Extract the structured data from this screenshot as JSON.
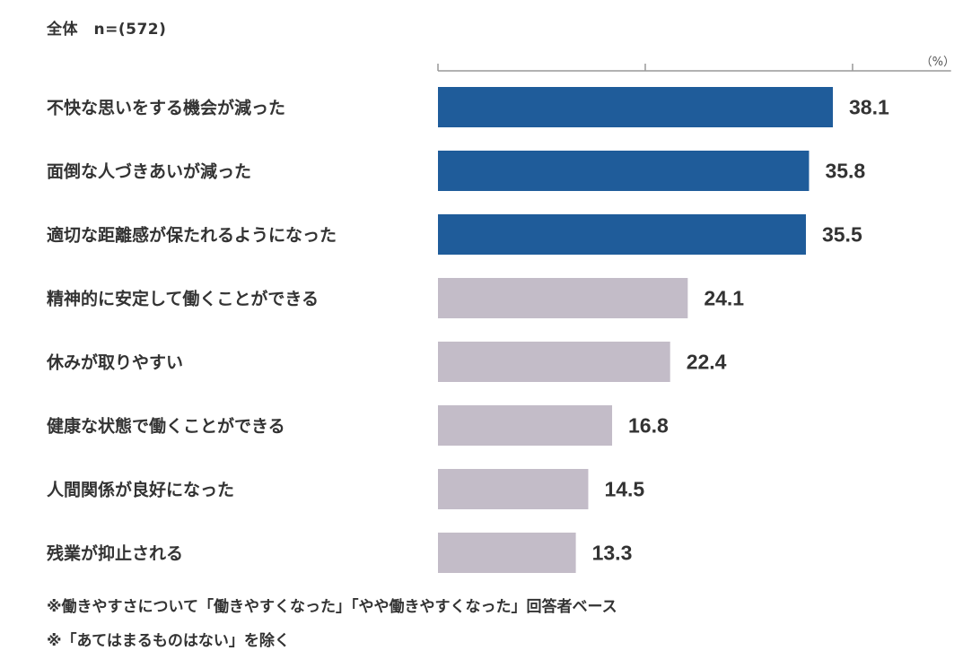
{
  "header": {
    "label": "全体　n=(572)"
  },
  "chart_data": {
    "type": "bar",
    "orientation": "horizontal",
    "unit": "（%）",
    "xlim": [
      0,
      45
    ],
    "categories": [
      "不快な思いをする機会が減った",
      "面倒な人づきあいが減った",
      "適切な距離感が保たれるようになった",
      "精神的に安定して働くことができる",
      "休みが取りやすい",
      "健康な状態で働くことができる",
      "人間関係が良好になった",
      "残業が抑止される"
    ],
    "values": [
      38.1,
      35.8,
      35.5,
      24.1,
      22.4,
      16.8,
      14.5,
      13.3
    ],
    "value_labels": [
      "38.1",
      "35.8",
      "35.5",
      "24.1",
      "22.4",
      "16.8",
      "14.5",
      "13.3"
    ],
    "highlighted_count": 3,
    "colors": {
      "highlight": "#1f5c9a",
      "normal": "#c3bcc8",
      "axis": "#999999"
    }
  },
  "footnotes": {
    "line1": "※働きやすさについて「働きやすくなった」「やや働きやすくなった」回答者ベース",
    "line2": "※「あてはまるものはない」を除く"
  }
}
